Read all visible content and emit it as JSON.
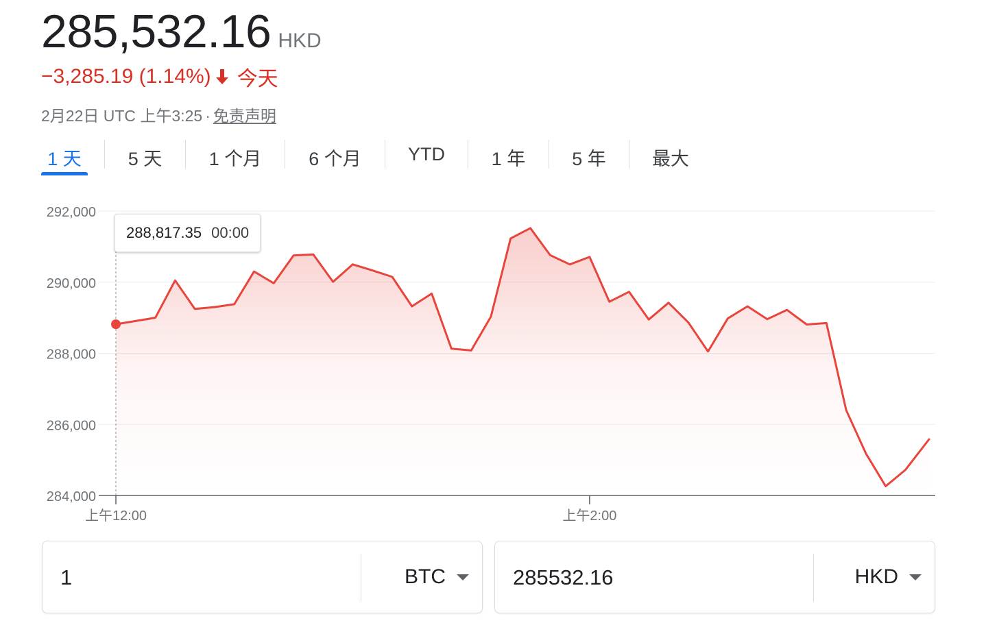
{
  "quote": {
    "price": "285,532.16",
    "currency": "HKD",
    "change": "−3,285.19 (1.14%)",
    "change_period": "今天",
    "timestamp": "2月22日 UTC 上午3:25",
    "separator": "·",
    "disclaimer": "免责声明",
    "change_color": "#d93025",
    "direction_icon": "arrow-down-icon"
  },
  "tabs": [
    {
      "label": "1 天",
      "active": true
    },
    {
      "label": "5 天",
      "active": false
    },
    {
      "label": "1 个月",
      "active": false
    },
    {
      "label": "6 个月",
      "active": false
    },
    {
      "label": "YTD",
      "active": false
    },
    {
      "label": "1 年",
      "active": false
    },
    {
      "label": "5 年",
      "active": false
    },
    {
      "label": "最大",
      "active": false
    }
  ],
  "tooltip": {
    "value": "288,817.35",
    "time": "00:00"
  },
  "chart_data": {
    "type": "area",
    "line_color": "#e8453c",
    "y_ticks": [
      "292,000",
      "290,000",
      "288,000",
      "286,000",
      "284,000"
    ],
    "y_tick_values": [
      292000,
      290000,
      288000,
      286000,
      284000
    ],
    "ylim": [
      284000,
      292000
    ],
    "x_ticks": [
      "上午12:00",
      "上午2:00"
    ],
    "x_tick_values": [
      0,
      120
    ],
    "xlim": [
      0,
      206
    ],
    "grid": true,
    "series": [
      {
        "x": [
          0,
          10,
          15,
          20,
          25,
          30,
          35,
          40,
          45,
          50,
          55,
          60,
          65,
          70,
          75,
          80,
          85,
          90,
          95,
          100,
          105,
          110,
          115,
          120,
          125,
          130,
          135,
          140,
          145,
          150,
          155,
          160,
          165,
          170,
          175,
          180,
          185,
          190,
          195,
          200,
          206
        ],
        "y": [
          288817,
          289000,
          290050,
          289250,
          289300,
          289380,
          290300,
          289970,
          290750,
          290780,
          290010,
          290500,
          290330,
          290150,
          289320,
          289680,
          288130,
          288080,
          289030,
          291230,
          291520,
          290760,
          290500,
          290710,
          289450,
          289730,
          288950,
          289420,
          288870,
          288050,
          288980,
          289320,
          288960,
          289220,
          288810,
          288850,
          286400,
          285180,
          284260,
          284720,
          285580
        ]
      }
    ]
  },
  "converter": {
    "from_amount": "1",
    "from_currency": "BTC",
    "to_amount": "285532.16",
    "to_currency": "HKD"
  }
}
